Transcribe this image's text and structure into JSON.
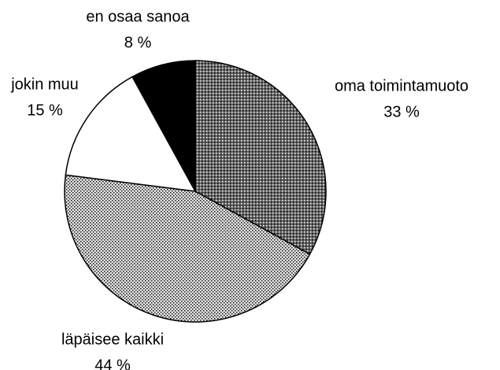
{
  "chart_data": {
    "type": "pie",
    "categories": [
      "oma toimintamuoto",
      "läpäisee kaikki",
      "jokin muu",
      "en osaa sanoa"
    ],
    "values": [
      33,
      44,
      15,
      8
    ],
    "value_labels": [
      "33 %",
      "44 %",
      "15 %",
      "8 %"
    ],
    "colors": [
      "#666666",
      "#e0e0e0",
      "#ffffff",
      "#000000"
    ]
  }
}
